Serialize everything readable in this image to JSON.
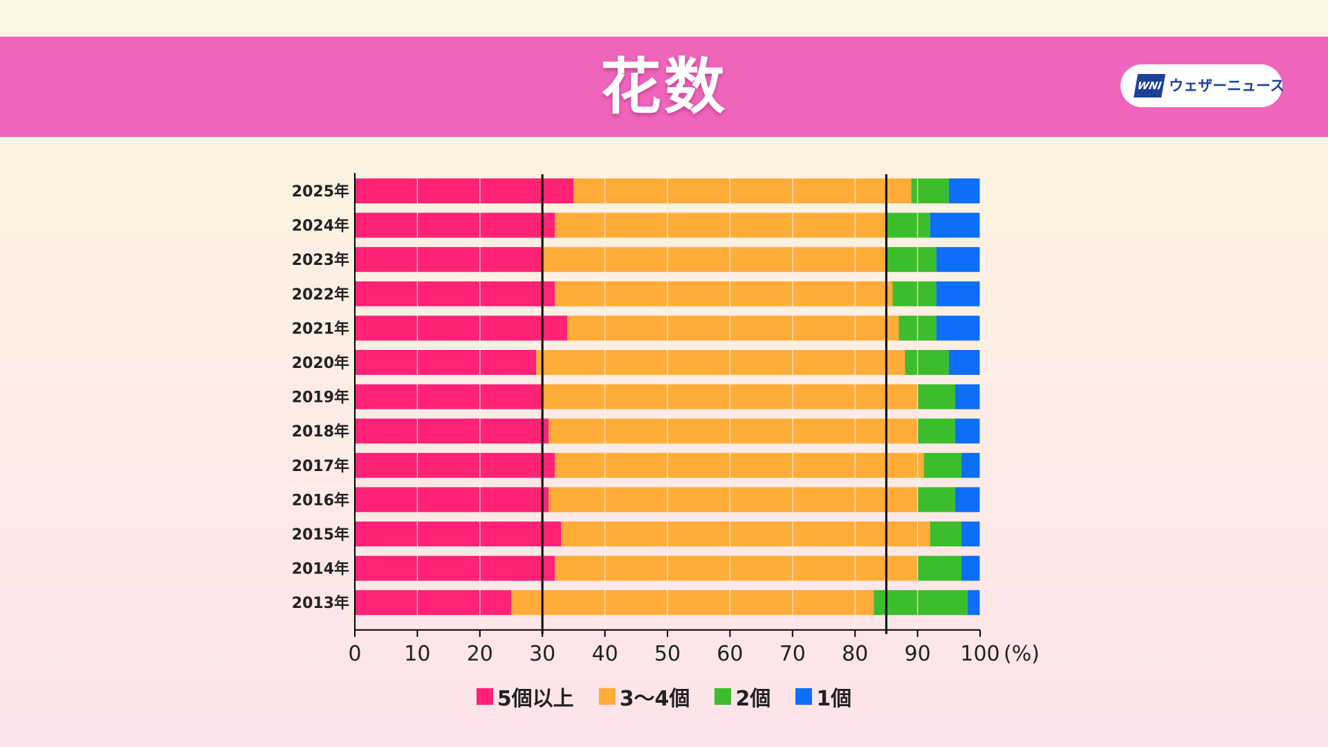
{
  "header": {
    "title": "花数",
    "logo_mark": "WNI",
    "logo_text": "ウェザーニュース"
  },
  "colors": {
    "banner": "#ef65bc",
    "series": [
      "#ff2277",
      "#ffac38",
      "#3cbd2c",
      "#0d6ef7"
    ],
    "reference_line": "#000000"
  },
  "chart_data": {
    "type": "bar",
    "orientation": "horizontal",
    "stacked": true,
    "categories": [
      "2025年",
      "2024年",
      "2023年",
      "2022年",
      "2021年",
      "2020年",
      "2019年",
      "2018年",
      "2017年",
      "2016年",
      "2015年",
      "2014年",
      "2013年"
    ],
    "series": [
      {
        "name": "5個以上",
        "values": [
          35,
          32,
          30,
          32,
          34,
          29,
          30,
          31,
          32,
          31,
          33,
          32,
          25
        ]
      },
      {
        "name": "3〜4個",
        "values": [
          54,
          53,
          55,
          54,
          53,
          59,
          60,
          59,
          59,
          59,
          59,
          58,
          58
        ]
      },
      {
        "name": "2個",
        "values": [
          6,
          7,
          8,
          7,
          6,
          7,
          6,
          6,
          6,
          6,
          5,
          7,
          15
        ]
      },
      {
        "name": "1個",
        "values": [
          5,
          8,
          7,
          7,
          7,
          5,
          4,
          4,
          3,
          4,
          3,
          3,
          2
        ]
      }
    ],
    "xlim": [
      0,
      100
    ],
    "xticks": [
      0,
      10,
      20,
      30,
      40,
      50,
      60,
      70,
      80,
      90,
      100
    ],
    "x_unit": "(%)",
    "reference_lines": [
      30,
      85
    ],
    "grid": "vertical",
    "legend_position": "bottom"
  }
}
